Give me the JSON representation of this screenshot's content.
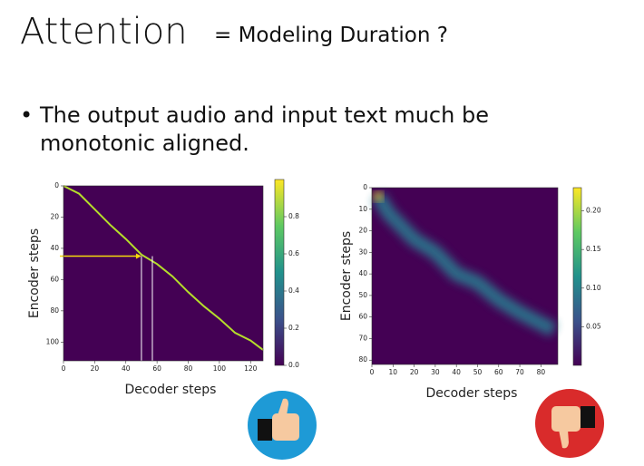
{
  "title": "Attention",
  "subtitle": "= Modeling Duration ?",
  "bullet": "The output audio and input text much be monotonic aligned.",
  "chart_data": [
    {
      "type": "heatmap",
      "xlabel": "Decoder steps",
      "ylabel": "Encoder steps",
      "xlim": [
        0,
        128
      ],
      "ylim": [
        0,
        112
      ],
      "xticks": [
        0,
        20,
        40,
        60,
        80,
        100,
        120
      ],
      "yticks": [
        0,
        20,
        40,
        60,
        80,
        100
      ],
      "clim": [
        0,
        1
      ],
      "cticks": [
        {
          "value": 0,
          "label": "0.0"
        },
        0.2,
        0.4,
        0.6,
        0.8
      ],
      "x": [
        0,
        10,
        20,
        30,
        40,
        50,
        60,
        70,
        80,
        90,
        100,
        110,
        120,
        128
      ],
      "values": [
        0,
        5,
        15,
        25,
        34,
        44,
        50,
        58,
        68,
        77,
        85,
        94,
        99,
        105
      ],
      "color": "#b5de2b",
      "background": "#440154",
      "markers": {
        "arrow_y": 45,
        "vlines": [
          50,
          57
        ]
      }
    },
    {
      "type": "heatmap",
      "xlabel": "Decoder steps",
      "ylabel": "Encoder steps",
      "xlim": [
        0,
        88
      ],
      "ylim": [
        0,
        82
      ],
      "xticks": [
        0,
        10,
        20,
        30,
        40,
        50,
        60,
        70,
        80
      ],
      "yticks": [
        0,
        10,
        20,
        30,
        40,
        50,
        60,
        70,
        80
      ],
      "clim": [
        0,
        0.23
      ],
      "cticks": [
        0.05,
        {
          "value": 0.1,
          "label": "0.10"
        },
        0.15,
        {
          "value": 0.2,
          "label": "0.20"
        }
      ],
      "x": [
        3,
        8,
        14,
        20,
        30,
        40,
        50,
        60,
        70,
        80,
        86
      ],
      "values": [
        4,
        12,
        18,
        24,
        30,
        40,
        44,
        52,
        58,
        63,
        66
      ],
      "color": "#2a788e",
      "background": "#440154"
    }
  ]
}
